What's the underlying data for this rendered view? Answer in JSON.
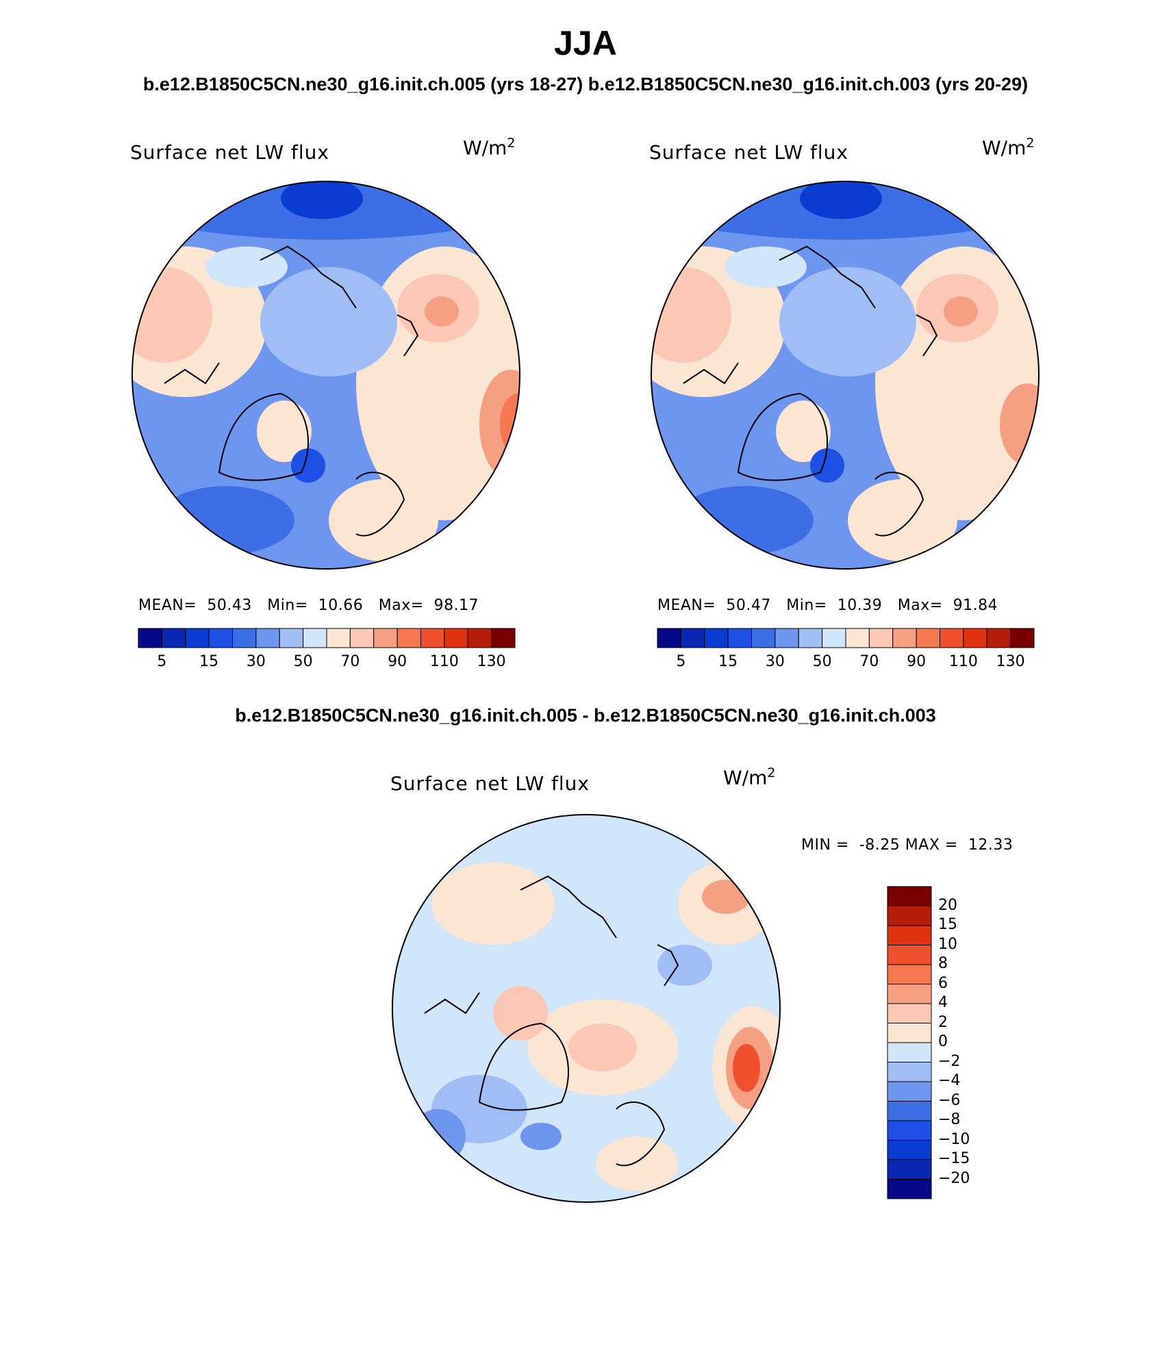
{
  "figure": {
    "season": "JJA",
    "subtitle_left": "b.e12.B1850C5CN.ne30_g16.init.ch.005 (yrs 18-27)",
    "subtitle_right": "b.e12.B1850C5CN.ne30_g16.init.ch.003 (yrs 20-29)",
    "difference_title": "b.e12.B1850C5CN.ne30_g16.init.ch.005 - b.e12.B1850C5CN.ne30_g16.init.ch.003"
  },
  "panels": [
    {
      "label": "Surface net LW flux",
      "units": "W/m",
      "units_exp": "2",
      "mean_label": "MEAN=",
      "mean": "50.43",
      "min_label": "Min=",
      "min": "10.66",
      "max_label": "Max=",
      "max": "98.17"
    },
    {
      "label": "Surface net LW flux",
      "units": "W/m",
      "units_exp": "2",
      "mean_label": "MEAN=",
      "mean": "50.47",
      "min_label": "Min=",
      "min": "10.39",
      "max_label": "Max=",
      "max": "91.84"
    }
  ],
  "difference_panel": {
    "label": "Surface net LW flux",
    "units": "W/m",
    "units_exp": "2",
    "min_label": "MIN =",
    "min": "-8.25",
    "max_label": "MAX =",
    "max": "12.33"
  },
  "colorbar_abs": {
    "colors": [
      "#08088a",
      "#0a28b4",
      "#0a3cd2",
      "#1e50e6",
      "#3c6ee6",
      "#6e96ee",
      "#a0bef5",
      "#d2e6fa",
      "#fae6d2",
      "#fac8b4",
      "#f5a082",
      "#f57850",
      "#f0502d",
      "#e1320f",
      "#b41e0a",
      "#780000"
    ],
    "tick_labels": [
      "5",
      "15",
      "30",
      "50",
      "70",
      "90",
      "110",
      "130"
    ]
  },
  "colorbar_diff": {
    "colors": [
      "#780000",
      "#b41e0a",
      "#e1320f",
      "#f0502d",
      "#f57850",
      "#f5a082",
      "#fac8b4",
      "#fae6d2",
      "#d2e6fa",
      "#a0bef5",
      "#6e96ee",
      "#3c6ee6",
      "#1e50e6",
      "#0a3cd2",
      "#0a28b4",
      "#08088a"
    ],
    "tick_labels": [
      "20",
      "15",
      "10",
      "8",
      "6",
      "4",
      "2",
      "0",
      "−2",
      "−4",
      "−6",
      "−8",
      "−10",
      "−15",
      "−20"
    ]
  },
  "map_colors": {
    "deep_blue": "#1e50e6",
    "mid_blue": "#3c6ee6",
    "light_blue": "#6e96ee",
    "pale_blue": "#a0bef5",
    "very_pale_blue": "#d2e6fa",
    "pale_orange": "#fae6d2",
    "light_orange": "#fac8b4",
    "orange": "#f5a082",
    "dark_orange": "#f57850",
    "red_orange": "#f0502d",
    "dark_blue": "#0a3cd2"
  }
}
